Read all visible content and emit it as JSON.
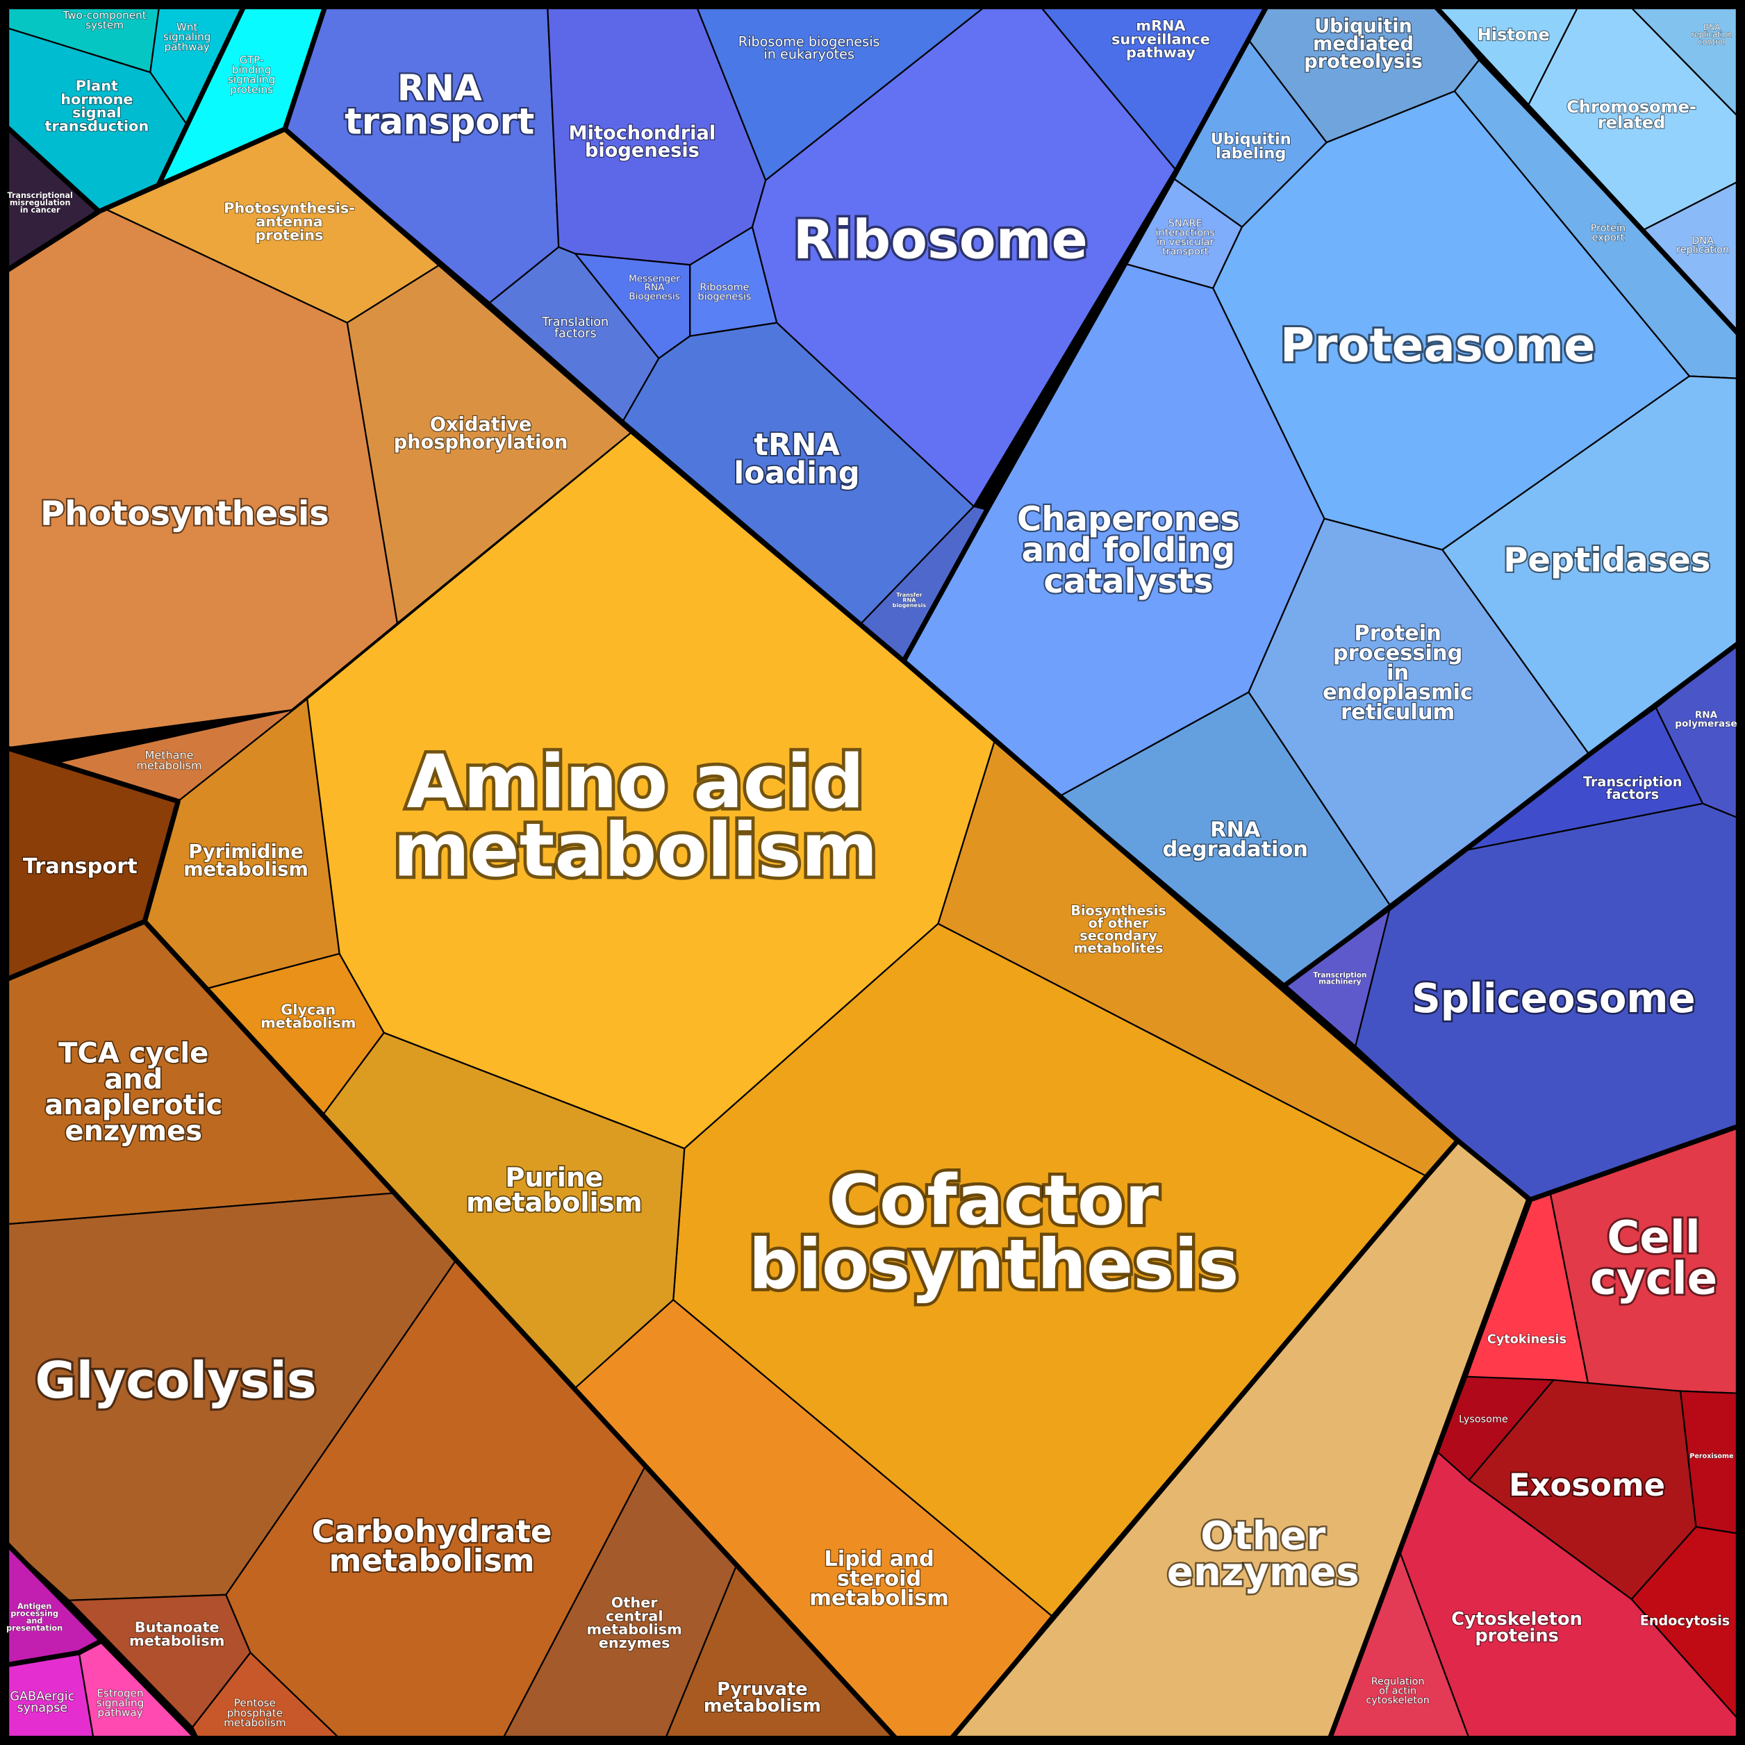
{
  "cells": [
    {
      "id": "two-component",
      "lines": [
        "Two-component",
        "system"
      ],
      "color": "#06c6c4"
    },
    {
      "id": "wnt",
      "lines": [
        "Wnt",
        "signaling",
        "pathway"
      ],
      "color": "#00c8dc"
    },
    {
      "id": "plant-hormone",
      "lines": [
        "Plant",
        "hormone",
        "signal",
        "transduction"
      ],
      "color": "#00bcd0"
    },
    {
      "id": "gtp-binding",
      "lines": [
        "GTP-",
        "binding",
        "signaling",
        "proteins"
      ],
      "color": "#08fcff"
    },
    {
      "id": "transcriptional-misregulation",
      "lines": [
        "Transcriptional",
        "misregulation",
        "in cancer"
      ],
      "color": "#33203c"
    },
    {
      "id": "rna-transport",
      "lines": [
        "RNA",
        "transport"
      ],
      "color": "#5a74e6"
    },
    {
      "id": "mitochondrial-biogenesis",
      "lines": [
        "Mitochondrial",
        "biogenesis"
      ],
      "color": "#5d68e8"
    },
    {
      "id": "ribosome-biogenesis-eukaryotes",
      "lines": [
        "Ribosome biogenesis",
        "in eukaryotes"
      ],
      "color": "#4a78e6"
    },
    {
      "id": "mrna-surveillance",
      "lines": [
        "mRNA",
        "surveillance",
        "pathway"
      ],
      "color": "#4a6fe8"
    },
    {
      "id": "ribosome",
      "lines": [
        "Ribosome"
      ],
      "color": "#6272f2"
    },
    {
      "id": "translation-factors",
      "lines": [
        "Translation",
        "factors"
      ],
      "color": "#5878dc"
    },
    {
      "id": "messenger-rna-biogenesis",
      "lines": [
        "Messenger",
        "RNA",
        "Biogenesis"
      ],
      "color": "#5578f0"
    },
    {
      "id": "ribosome-biogenesis",
      "lines": [
        "Ribosome",
        "biogenesis"
      ],
      "color": "#5a80f5"
    },
    {
      "id": "trna-loading",
      "lines": [
        "tRNA",
        "loading"
      ],
      "color": "#5078dc"
    },
    {
      "id": "transfer-rna-biogenesis",
      "lines": [
        "Transfer",
        "RNA",
        "biogenesis"
      ],
      "color": "#4f68cc"
    },
    {
      "id": "ubiquitin-mediated-proteolysis",
      "lines": [
        "Ubiquitin",
        "mediated",
        "proteolysis"
      ],
      "color": "#70a4dc"
    },
    {
      "id": "ubiquitin-labeling",
      "lines": [
        "Ubiquitin",
        "labeling"
      ],
      "color": "#68a6f0"
    },
    {
      "id": "snare",
      "lines": [
        "SNARE",
        "interactions",
        "in vesicular",
        "transport"
      ],
      "color": "#80acfc"
    },
    {
      "id": "histone",
      "lines": [
        "Histone"
      ],
      "color": "#8ed2fc"
    },
    {
      "id": "chromosome-related",
      "lines": [
        "Chromosome-",
        "related"
      ],
      "color": "#94d2fe"
    },
    {
      "id": "dna-replication-control",
      "lines": [
        "DNA",
        "replication",
        "control"
      ],
      "color": "#82c2ee"
    },
    {
      "id": "protein-export",
      "lines": [
        "Protein",
        "export"
      ],
      "color": "#70b0ec"
    },
    {
      "id": "dna-replication",
      "lines": [
        "DNA",
        "replication"
      ],
      "color": "#8abaf8"
    },
    {
      "id": "proteasome",
      "lines": [
        "Proteasome"
      ],
      "color": "#70b2fc"
    },
    {
      "id": "chaperones",
      "lines": [
        "Chaperones",
        "and folding",
        "catalysts"
      ],
      "color": "#6ea0fc"
    },
    {
      "id": "peptidases",
      "lines": [
        "Peptidases"
      ],
      "color": "#7ebef8"
    },
    {
      "id": "protein-processing-er",
      "lines": [
        "Protein",
        "processing",
        "in",
        "endoplasmic",
        "reticulum"
      ],
      "color": "#78aaee"
    },
    {
      "id": "rna-degradation",
      "lines": [
        "RNA",
        "degradation"
      ],
      "color": "#64a0e0"
    },
    {
      "id": "transcription-machinery",
      "lines": [
        "Transcription",
        "machinery"
      ],
      "color": "#5f5acb"
    },
    {
      "id": "spliceosome",
      "lines": [
        "Spliceosome"
      ],
      "color": "#4453c4"
    },
    {
      "id": "transcription-factors",
      "lines": [
        "Transcription",
        "factors"
      ],
      "color": "#3f4dcc"
    },
    {
      "id": "rna-polymerase",
      "lines": [
        "RNA",
        "polymerase"
      ],
      "color": "#4a55c8"
    },
    {
      "id": "photosynthesis-antenna",
      "lines": [
        "Photosynthesis-",
        "antenna",
        "proteins"
      ],
      "color": "#eca63c"
    },
    {
      "id": "photosynthesis",
      "lines": [
        "Photosynthesis"
      ],
      "color": "#dc8846"
    },
    {
      "id": "oxidative-phosphorylation",
      "lines": [
        "Oxidative",
        "phosphorylation"
      ],
      "color": "#da9242"
    },
    {
      "id": "methane-metabolism",
      "lines": [
        "Methane",
        "metabolism"
      ],
      "color": "#d27a3e"
    },
    {
      "id": "transport",
      "lines": [
        "Transport"
      ],
      "color": "#8b3e08"
    },
    {
      "id": "amino-acid-metabolism",
      "lines": [
        "Amino acid",
        "metabolism"
      ],
      "color": "#fdb827"
    },
    {
      "id": "pyrimidine-metabolism",
      "lines": [
        "Pyrimidine",
        "metabolism"
      ],
      "color": "#d98a22"
    },
    {
      "id": "glycan-metabolism",
      "lines": [
        "Glycan",
        "metabolism"
      ],
      "color": "#e99118"
    },
    {
      "id": "biosynthesis-other-secondary",
      "lines": [
        "Biosynthesis",
        "of other",
        "secondary",
        "metabolites"
      ],
      "color": "#e29420"
    },
    {
      "id": "cofactor-biosynthesis",
      "lines": [
        "Cofactor",
        "biosynthesis"
      ],
      "color": "#eea318"
    },
    {
      "id": "purine-metabolism",
      "lines": [
        "Purine",
        "metabolism"
      ],
      "color": "#dc9c22"
    },
    {
      "id": "lipid-steroid",
      "lines": [
        "Lipid and",
        "steroid",
        "metabolism"
      ],
      "color": "#ee8e22"
    },
    {
      "id": "pyruvate-metabolism",
      "lines": [
        "Pyruvate",
        "metabolism"
      ],
      "color": "#a85a20"
    },
    {
      "id": "other-central",
      "lines": [
        "Other",
        "central",
        "metabolism",
        "enzymes"
      ],
      "color": "#a45a2a"
    },
    {
      "id": "carbohydrate-metabolism",
      "lines": [
        "Carbohydrate",
        "metabolism"
      ],
      "color": "#c26520"
    },
    {
      "id": "tca-cycle",
      "lines": [
        "TCA cycle",
        "and",
        "anaplerotic",
        "enzymes"
      ],
      "color": "#bd6a20"
    },
    {
      "id": "glycolysis",
      "lines": [
        "Glycolysis"
      ],
      "color": "#ab6028"
    },
    {
      "id": "butanoate-metabolism",
      "lines": [
        "Butanoate",
        "metabolism"
      ],
      "color": "#b0502c"
    },
    {
      "id": "pentose-phosphate",
      "lines": [
        "Pentose",
        "phosphate",
        "metabolism"
      ],
      "color": "#c8582a"
    },
    {
      "id": "antigen-processing",
      "lines": [
        "Antigen",
        "processing",
        "and",
        "presentation"
      ],
      "color": "#c21eb0"
    },
    {
      "id": "gabaergic-synapse",
      "lines": [
        "GABAergic",
        "synapse"
      ],
      "color": "#e42ed0"
    },
    {
      "id": "estrogen-signaling",
      "lines": [
        "Estrogen",
        "signaling",
        "pathway"
      ],
      "color": "#ff4ab2"
    },
    {
      "id": "other-enzymes",
      "lines": [
        "Other",
        "enzymes"
      ],
      "color": "#e6b76e"
    },
    {
      "id": "cytokinesis",
      "lines": [
        "Cytokinesis"
      ],
      "color": "#ff3b4b"
    },
    {
      "id": "cell-cycle",
      "lines": [
        "Cell",
        "cycle"
      ],
      "color": "#e23a48"
    },
    {
      "id": "lysosome",
      "lines": [
        "Lysosome"
      ],
      "color": "#b00a1a"
    },
    {
      "id": "exosome",
      "lines": [
        "Exosome"
      ],
      "color": "#ac1618"
    },
    {
      "id": "peroxisome",
      "lines": [
        "Peroxisome"
      ],
      "color": "#b80a16"
    },
    {
      "id": "endocytosis",
      "lines": [
        "Endocytosis"
      ],
      "color": "#c00a14"
    },
    {
      "id": "cytoskeleton-proteins",
      "lines": [
        "Cytoskeleton",
        "proteins"
      ],
      "color": "#e0284a"
    },
    {
      "id": "regulation-actin",
      "lines": [
        "Regulation",
        "of actin",
        "cytoskeleton"
      ],
      "color": "#e33a55"
    }
  ]
}
